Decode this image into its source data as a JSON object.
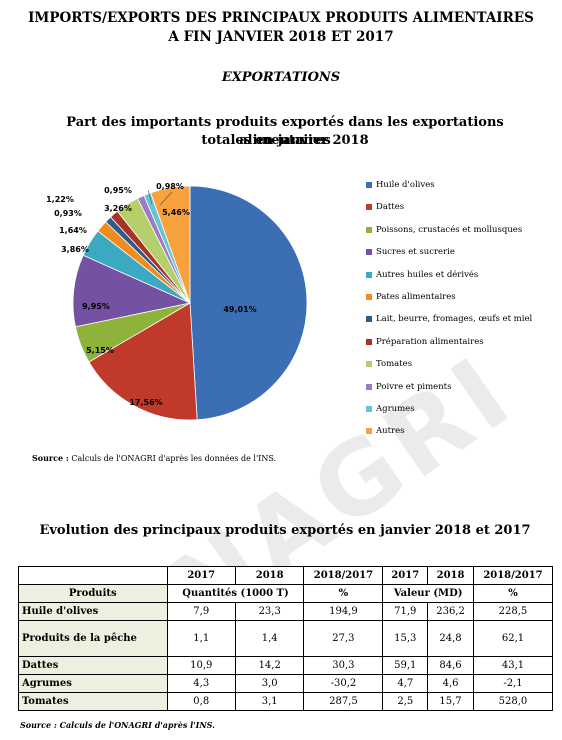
{
  "header": {
    "title_line1": "IMPORTS/EXPORTS DES PRINCIPAUX PRODUITS ALIMENTAIRES",
    "title_line2": "A FIN JANVIER 2018 ET 2017",
    "section": "EXPORTATIONS"
  },
  "watermark": "ONAGRI",
  "chart_data": {
    "type": "pie",
    "title_line1": "Part des importants produits exportés dans les exportations alimentaires",
    "title_line2": "totales en janvier 2018",
    "slices": [
      {
        "name": "Huile d'olives",
        "value": 49.01,
        "label": "49,01%",
        "color": "#3c6eb4"
      },
      {
        "name": "Dattes",
        "value": 17.56,
        "label": "17,56%",
        "color": "#c0392b"
      },
      {
        "name": "Poissons, crustacés et mollusques",
        "value": 5.15,
        "label": "5,15%",
        "color": "#8db33a"
      },
      {
        "name": "Sucres et sucrerie",
        "value": 9.95,
        "label": "9,95%",
        "color": "#7451a3"
      },
      {
        "name": "Autres huiles et dérivés",
        "value": 3.86,
        "label": "3,86%",
        "color": "#3ca9c3"
      },
      {
        "name": "Pates alimentaires",
        "value": 1.64,
        "label": "1,64%",
        "color": "#f08c1e"
      },
      {
        "name": "Lait, beurre, fromages, œufs et miel",
        "value": 0.93,
        "label": "0,93%",
        "color": "#2e5c8a"
      },
      {
        "name": "Préparation alimentaires",
        "value": 1.22,
        "label": "1,22%",
        "color": "#a93226"
      },
      {
        "name": "Tomates",
        "value": 3.26,
        "label": "3,26%",
        "color": "#b5cf6b"
      },
      {
        "name": "Poivre et piments",
        "value": 0.95,
        "label": "0,95%",
        "color": "#9b7cc4"
      },
      {
        "name": "Agrumes",
        "value": 0.98,
        "label": "0,98%",
        "color": "#67c3d6"
      },
      {
        "name": "Autres",
        "value": 5.46,
        "label": "5,46%",
        "color": "#f7a23c"
      }
    ]
  },
  "source_chart": {
    "bold": "Source :",
    "text": " Calculs de l'ONAGRI d'après les données de l'INS."
  },
  "table": {
    "title": "Evolution des principaux produits exportés en janvier 2018 et 2017",
    "years": [
      "2017",
      "2018",
      "2018/2017",
      "2017",
      "2018",
      "2018/2017"
    ],
    "products_label": "Produits",
    "quantities_label": "Quantités (1000 T)",
    "value_label": "Valeur (MD)",
    "pct": "%",
    "rows": [
      {
        "name": "Huile d'olives",
        "q2017": "7,9",
        "q2018": "23,3",
        "qvar": "194,9",
        "v2017": "71,9",
        "v2018": "236,2",
        "vvar": "228,5"
      },
      {
        "name": "Produits de la pêche",
        "q2017": "1,1",
        "q2018": "1,4",
        "qvar": "27,3",
        "v2017": "15,3",
        "v2018": "24,8",
        "vvar": "62,1"
      },
      {
        "name": "Dattes",
        "q2017": "10,9",
        "q2018": "14,2",
        "qvar": "30,3",
        "v2017": "59,1",
        "v2018": "84,6",
        "vvar": "43,1"
      },
      {
        "name": "Agrumes",
        "q2017": "4,3",
        "q2018": "3,0",
        "qvar": "-30,2",
        "v2017": "4,7",
        "v2018": "4,6",
        "vvar": "-2,1"
      },
      {
        "name": "Tomates",
        "q2017": "0,8",
        "q2018": "3,1",
        "qvar": "287,5",
        "v2017": "2,5",
        "v2018": "15,7",
        "vvar": "528,0"
      }
    ]
  },
  "source_table": {
    "text": "Source : Calculs de l'ONAGRI d'après l'INS."
  }
}
